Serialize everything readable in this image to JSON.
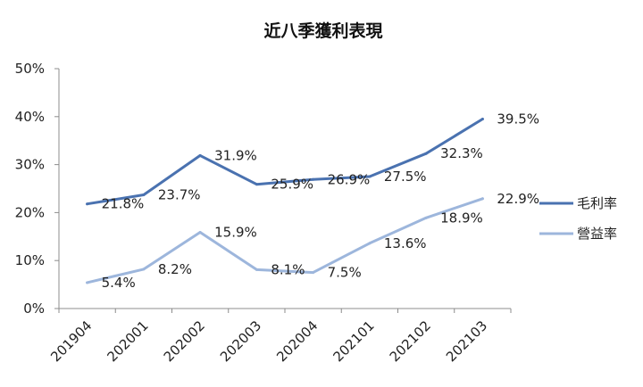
{
  "chart_data": {
    "type": "line",
    "title": "近八季獲利表現",
    "categories": [
      "201904",
      "202001",
      "202002",
      "202003",
      "202004",
      "202101",
      "202102",
      "202103"
    ],
    "series": [
      {
        "name": "毛利率",
        "color": "#4a72b0",
        "values": [
          21.8,
          23.7,
          31.9,
          25.9,
          26.9,
          27.5,
          32.3,
          39.5
        ],
        "labels": [
          "21.8%",
          "23.7%",
          "31.9%",
          "25.9%",
          "26.9%",
          "27.5%",
          "32.3%",
          "39.5%"
        ]
      },
      {
        "name": "營益率",
        "color": "#9db6dc",
        "values": [
          5.4,
          8.2,
          15.9,
          8.1,
          7.5,
          13.6,
          18.9,
          22.9
        ],
        "labels": [
          "5.4%",
          "8.2%",
          "15.9%",
          "8.1%",
          "7.5%",
          "13.6%",
          "18.9%",
          "22.9%"
        ]
      }
    ],
    "yticks": [
      "0%",
      "10%",
      "20%",
      "30%",
      "40%",
      "50%"
    ],
    "ylim": [
      0,
      50
    ],
    "xlabel": "",
    "ylabel": "",
    "grid": false,
    "legend": "right"
  }
}
